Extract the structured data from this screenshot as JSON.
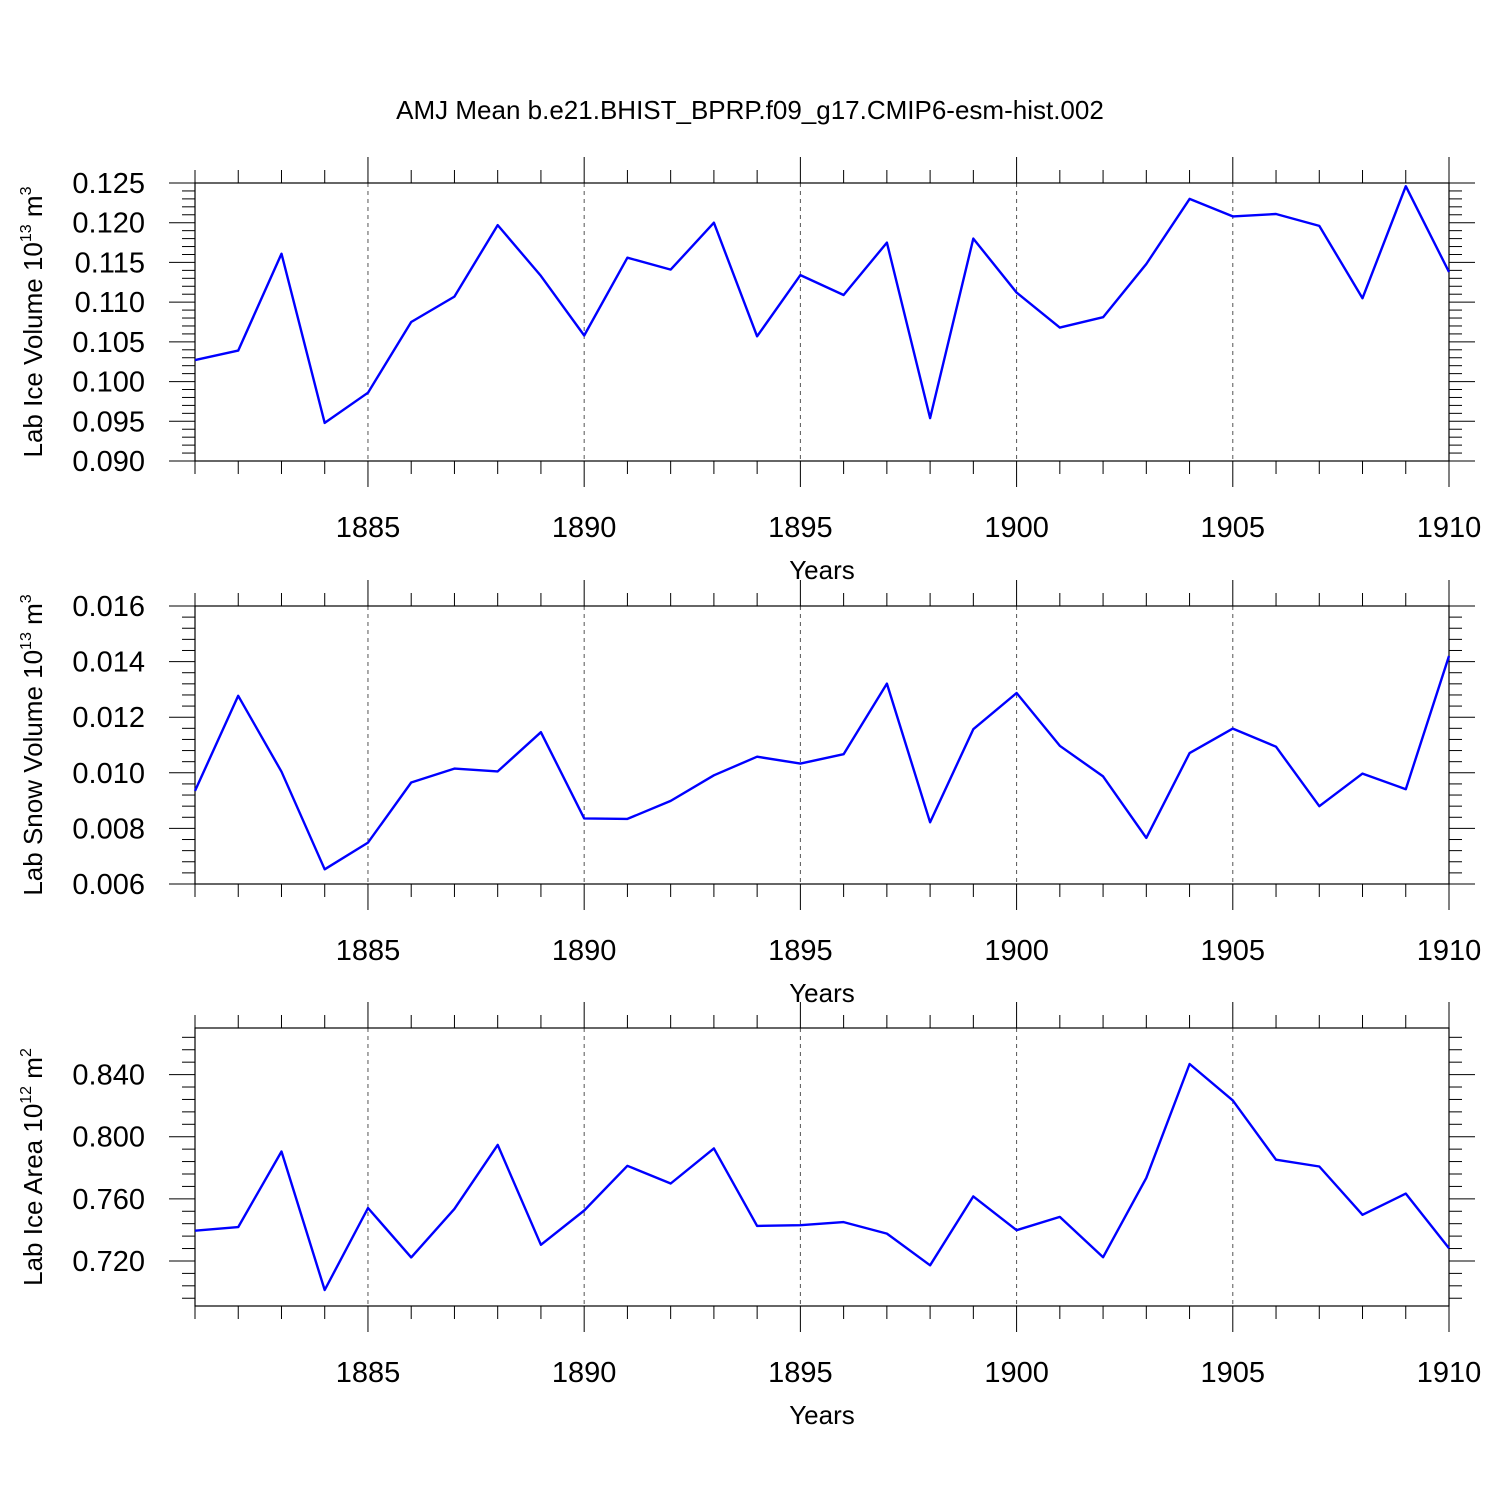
{
  "chart_data": {
    "title": "AMJ Mean b.e21.BHIST_BPRP.f09_g17.CMIP6-esm-hist.002",
    "type": "line",
    "series_color": "#0000ff",
    "x": [
      1881,
      1882,
      1883,
      1884,
      1885,
      1886,
      1887,
      1888,
      1889,
      1890,
      1891,
      1892,
      1893,
      1894,
      1895,
      1896,
      1897,
      1898,
      1899,
      1900,
      1901,
      1902,
      1903,
      1904,
      1905,
      1906,
      1907,
      1908,
      1909,
      1910
    ],
    "xlim": [
      1881,
      1910
    ],
    "xticks": [
      1885,
      1890,
      1895,
      1900,
      1905,
      1910
    ],
    "panels": [
      {
        "ylabel_prefix": "Lab Ice Volume 10",
        "ylabel_exp": "13",
        "ylabel_unit": " m",
        "ylabel_unit_exp": "3",
        "xlabel": "Years",
        "ylim": [
          0.09,
          0.125
        ],
        "yticks": [
          "0.090",
          "0.095",
          "0.100",
          "0.105",
          "0.110",
          "0.115",
          "0.120",
          "0.125"
        ],
        "ytick_values": [
          0.09,
          0.095,
          0.1,
          0.105,
          0.11,
          0.115,
          0.12,
          0.125
        ],
        "minor_step": 0.001,
        "values": [
          0.1027,
          0.1039,
          0.1161,
          0.0948,
          0.0986,
          0.1075,
          0.1107,
          0.1197,
          0.1133,
          0.1058,
          0.1156,
          0.1141,
          0.12,
          0.1057,
          0.1134,
          0.1109,
          0.1175,
          0.0954,
          0.118,
          0.1112,
          0.1068,
          0.1081,
          0.1148,
          0.123,
          0.1208,
          0.1211,
          0.1196,
          0.1105,
          0.1246,
          0.1138
        ]
      },
      {
        "ylabel_prefix": "Lab Snow Volume 10",
        "ylabel_exp": "13",
        "ylabel_unit": " m",
        "ylabel_unit_exp": "3",
        "xlabel": "Years",
        "ylim": [
          0.006,
          0.016
        ],
        "yticks": [
          "0.006",
          "0.008",
          "0.010",
          "0.012",
          "0.014",
          "0.016"
        ],
        "ytick_values": [
          0.006,
          0.008,
          0.01,
          0.012,
          0.014,
          0.016
        ],
        "minor_step": 0.0004,
        "values": [
          0.00935,
          0.01277,
          0.01004,
          0.00653,
          0.00749,
          0.00965,
          0.01015,
          0.01005,
          0.01146,
          0.00836,
          0.00834,
          0.00899,
          0.00991,
          0.01058,
          0.01033,
          0.01067,
          0.01321,
          0.00822,
          0.01157,
          0.01287,
          0.01097,
          0.00987,
          0.00766,
          0.01071,
          0.01159,
          0.01094,
          0.0088,
          0.00997,
          0.00941,
          0.0142
        ]
      },
      {
        "ylabel_prefix": "Lab Ice Area 10",
        "ylabel_exp": "12",
        "ylabel_unit": " m",
        "ylabel_unit_exp": "2",
        "xlabel": "Years",
        "ylim": [
          0.691,
          0.87
        ],
        "yticks": [
          "0.720",
          "0.760",
          "0.800",
          "0.840"
        ],
        "ytick_values": [
          0.72,
          0.76,
          0.8,
          0.84
        ],
        "minor_step": 0.008,
        "values": [
          0.7395,
          0.7418,
          0.7905,
          0.7013,
          0.7541,
          0.7223,
          0.7535,
          0.7947,
          0.7304,
          0.7525,
          0.7813,
          0.7699,
          0.7925,
          0.7426,
          0.743,
          0.745,
          0.7376,
          0.7172,
          0.7616,
          0.7398,
          0.7484,
          0.7224,
          0.7735,
          0.8468,
          0.8234,
          0.7852,
          0.7808,
          0.7497,
          0.7634,
          0.7282
        ]
      }
    ]
  }
}
